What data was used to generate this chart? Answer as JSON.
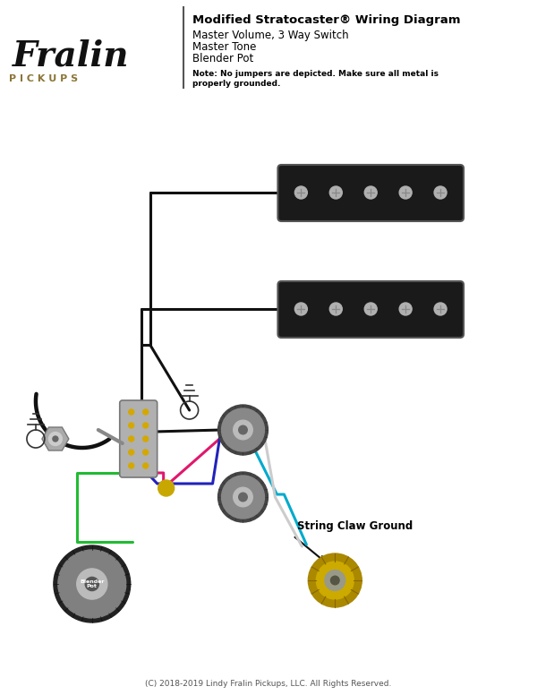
{
  "title": "Modified Stratocaster® Wiring Diagram",
  "subtitle_lines": [
    "Master Volume, 3 Way Switch",
    "Master Tone",
    "Blender Pot"
  ],
  "note_line1": "Note: No jumpers are depicted. Make sure all metal is",
  "note_line2": "properly grounded.",
  "copyright": "(C) 2018-2019 Lindy Fralin Pickups, LLC. All Rights Reserved.",
  "bg_color": "#ffffff",
  "text_color": "#000000",
  "accent_color": "#8B7536",
  "pickup_color": "#1a1a1a",
  "pickup_screw_color": "#b0b0b0",
  "wire_black": "#111111",
  "wire_green": "#22bb33",
  "wire_pink": "#e0186c",
  "wire_blue": "#2222bb",
  "wire_cyan": "#00aacc",
  "wire_white": "#dddddd",
  "pot_color": "#888888",
  "pot_nut_color": "#bbbbbb",
  "gold_color": "#c8a800",
  "fralin_logo_color": "#111111",
  "pickups_text_color": "#8B7536"
}
